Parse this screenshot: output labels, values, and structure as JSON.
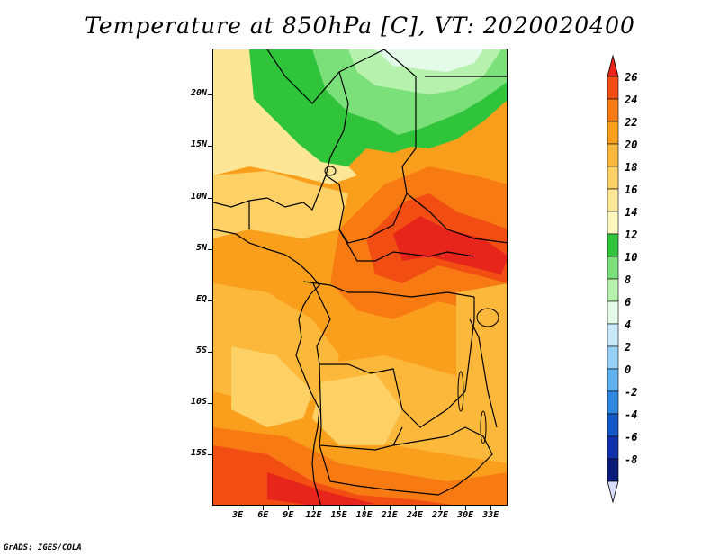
{
  "title": "Temperature at 850hPa [C], VT: 2020020400",
  "credit": "GrADS: IGES/COLA",
  "map": {
    "latitude_labels": [
      "20N",
      "15N",
      "10N",
      "5N",
      "EQ",
      "5S",
      "10S",
      "15S"
    ],
    "longitude_labels": [
      "3E",
      "6E",
      "9E",
      "12E",
      "15E",
      "18E",
      "21E",
      "24E",
      "27E",
      "30E",
      "33E"
    ],
    "lon_range": [
      0,
      35
    ],
    "lat_range": [
      -20,
      24.5
    ],
    "lat_values": [
      20,
      15,
      10,
      5,
      0,
      -5,
      -10,
      -15
    ],
    "lon_values": [
      3,
      6,
      9,
      12,
      15,
      18,
      21,
      24,
      27,
      30,
      33
    ]
  },
  "colorbar": {
    "labels": [
      "26",
      "24",
      "22",
      "20",
      "18",
      "16",
      "14",
      "12",
      "10",
      "8",
      "6",
      "4",
      "2",
      "0",
      "-2",
      "-4",
      "-6",
      "-8"
    ],
    "colors": [
      "#e8251a",
      "#f24d13",
      "#f77a12",
      "#fa9f1c",
      "#fcb83a",
      "#fdd166",
      "#fde796",
      "#fdf6bd",
      "#2fc43a",
      "#7be07a",
      "#b6f2ae",
      "#e4fbe9",
      "#c7e7fb",
      "#97d0f7",
      "#5fb0ef",
      "#2e87e1",
      "#1457c8",
      "#0e30ab",
      "#0a1a7a",
      "#dcdcff"
    ],
    "top_triangle_color": "#e8251a",
    "bottom_triangle_color": "#dcdcff"
  },
  "field_colors": {
    "hot": "#e8251a",
    "very_warm": "#f24d13",
    "warm": "#f77a12",
    "mild": "#fa9f1c",
    "moderate": "#fcb83a",
    "cool": "#fdd166",
    "cooler": "#fde796",
    "green_dark": "#2fc43a",
    "green": "#7be07a",
    "green_light": "#b6f2ae",
    "mint": "#e4fbe9"
  }
}
